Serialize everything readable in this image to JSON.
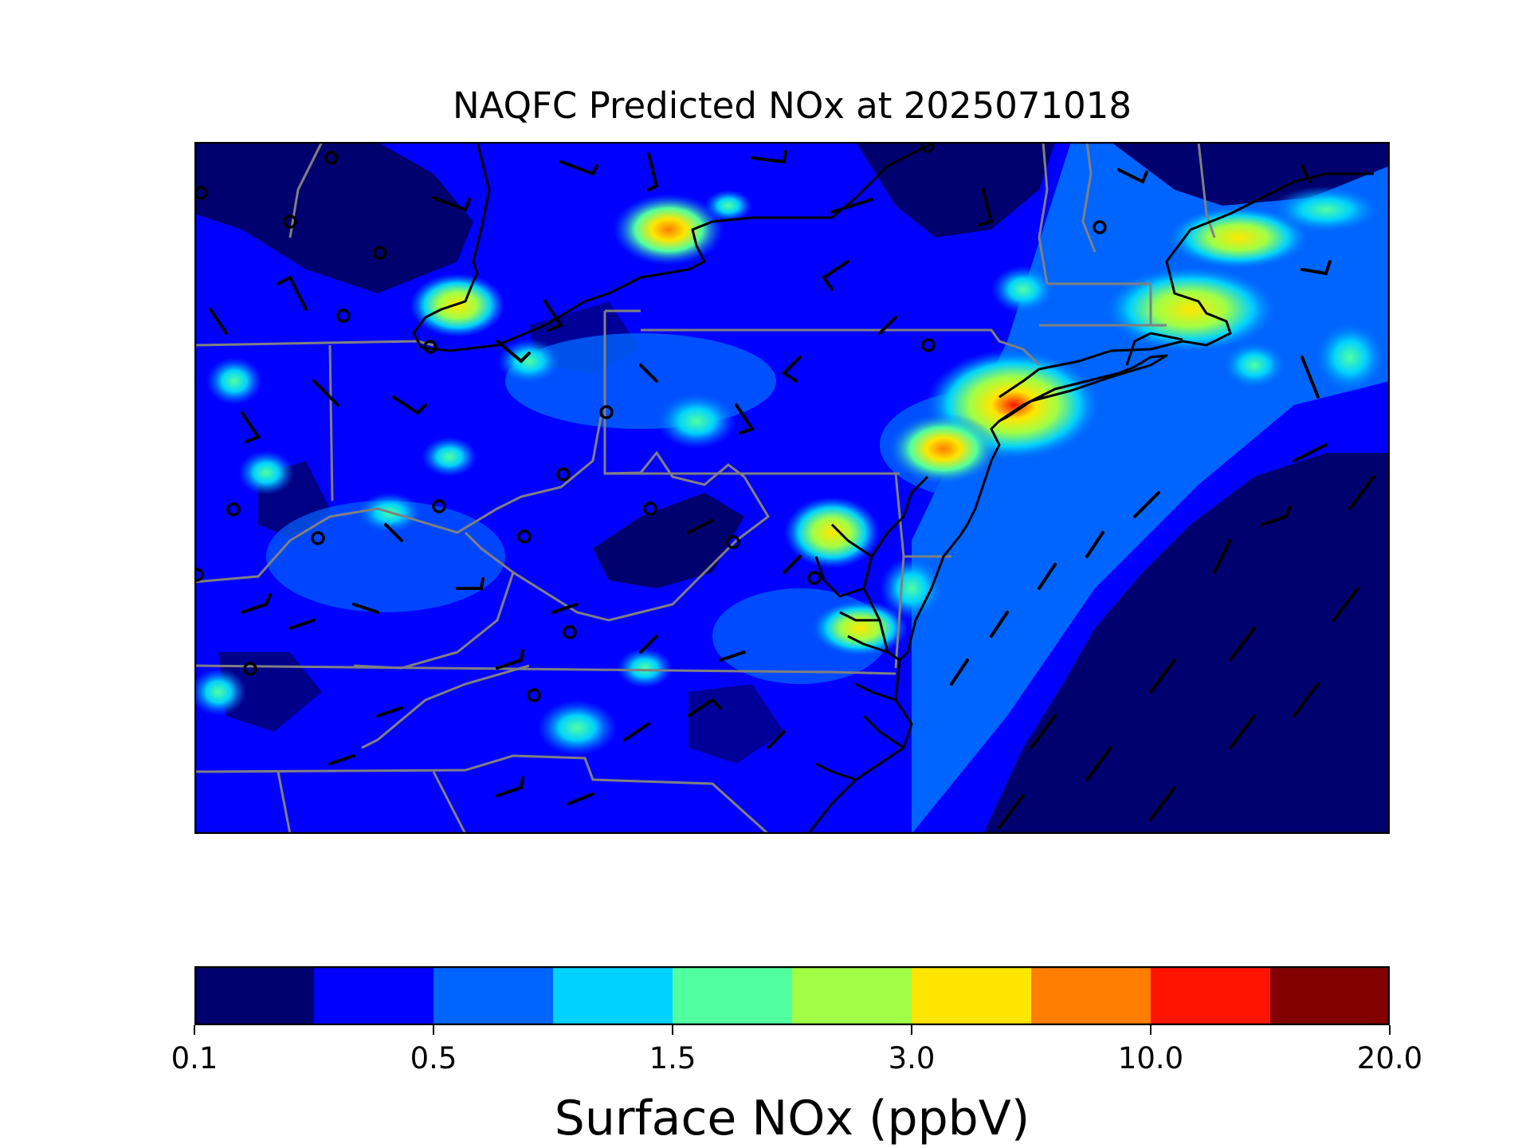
{
  "title": "NAQFC Predicted NOx at 2025071018",
  "colorbar": {
    "label": "Surface NOx (ppbV)",
    "colors": [
      "#00006e",
      "#0000ff",
      "#0064ff",
      "#00d2ff",
      "#50ffa0",
      "#a0ff46",
      "#ffe600",
      "#ff7d00",
      "#ff1400",
      "#820000"
    ],
    "tick_labels": [
      "0.1",
      "0.5",
      "1.5",
      "3.0",
      "10.0",
      "20.0"
    ]
  },
  "map": {
    "region": "Mid-Atlantic and Northeast United States",
    "boundary_colors": {
      "coastline": "#000000",
      "state": "#808080"
    },
    "features": [
      "state-boundaries",
      "coastline",
      "wind-barbs",
      "calm-wind-circles",
      "nox-concentration-field"
    ]
  }
}
